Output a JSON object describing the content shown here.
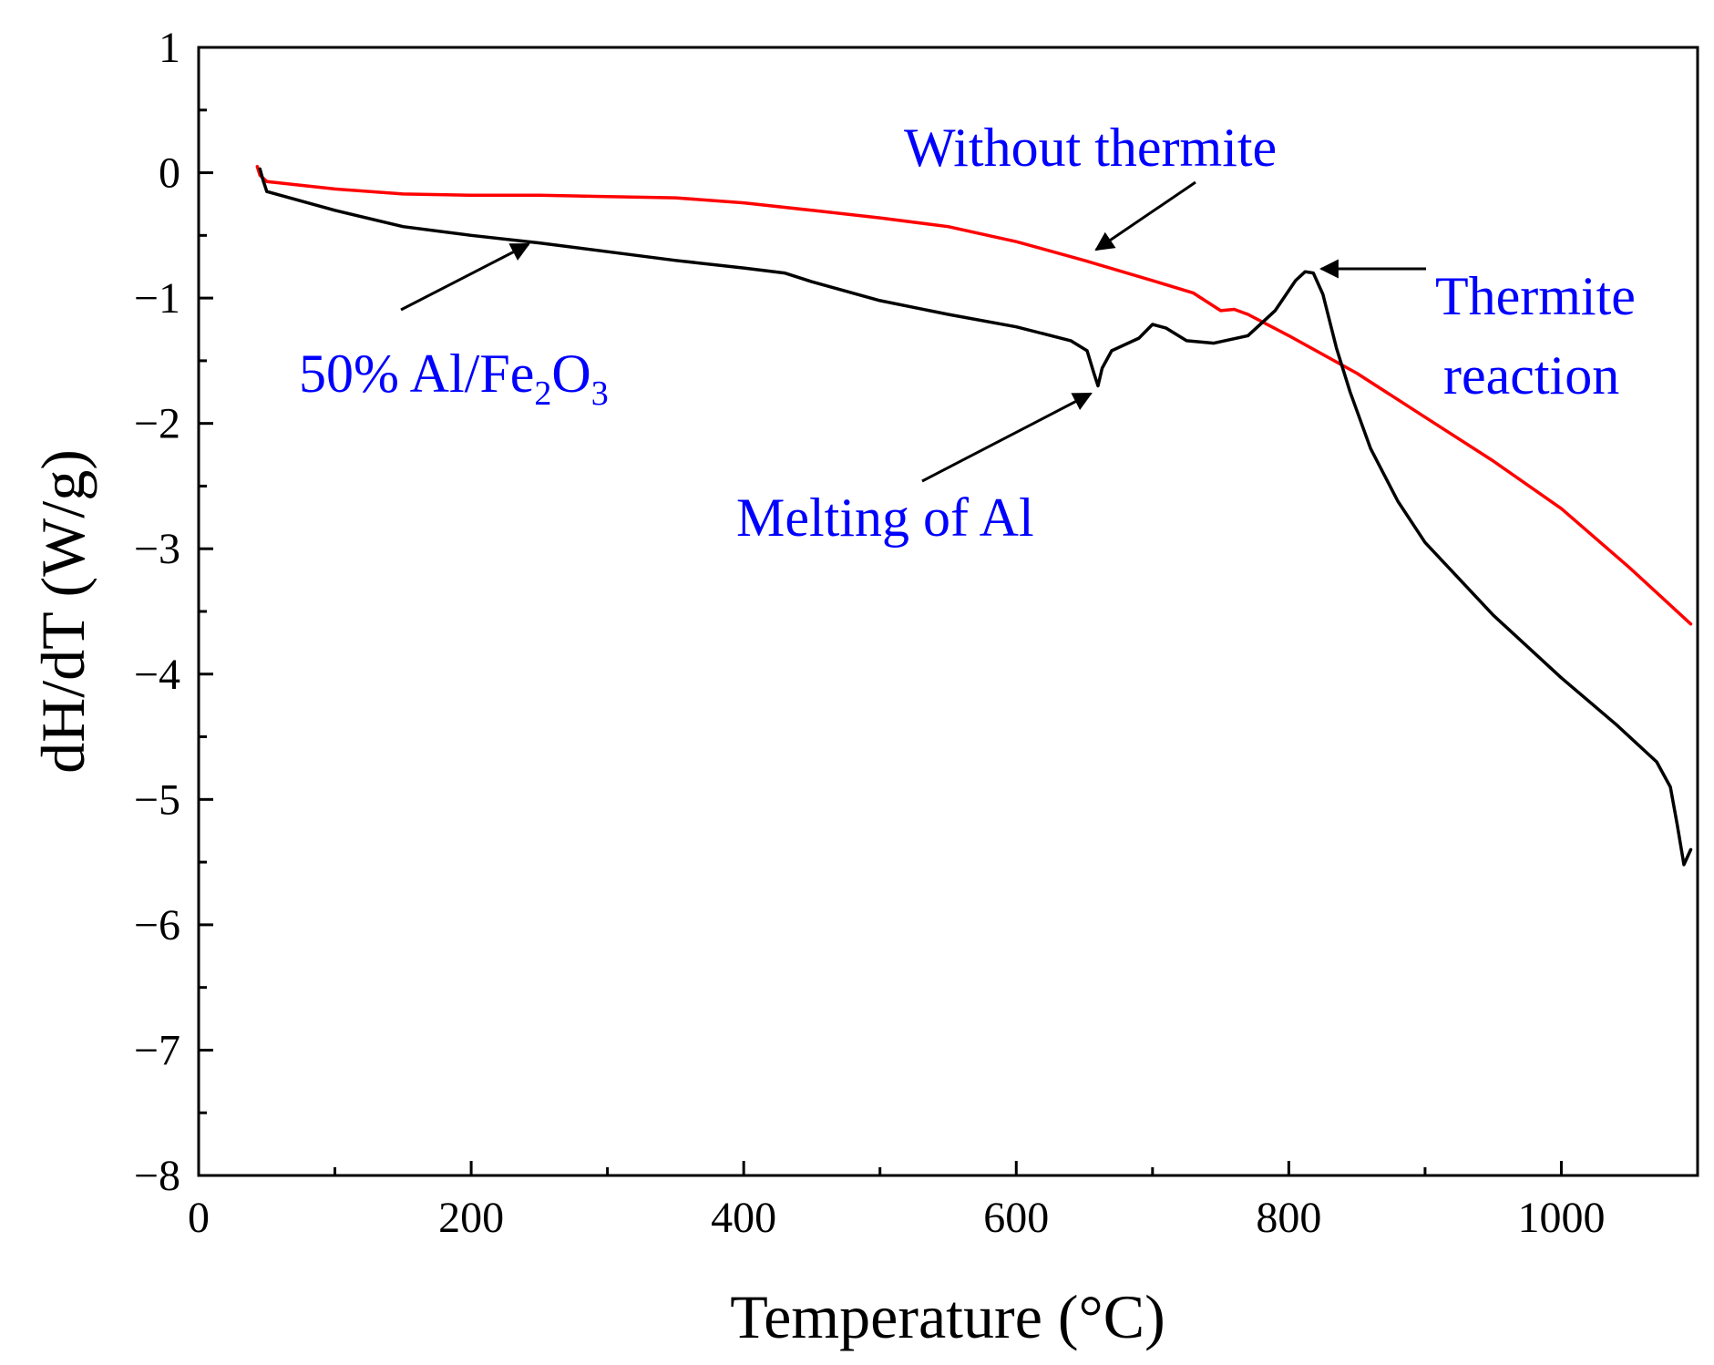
{
  "chart_data": {
    "type": "line",
    "title": "",
    "xlabel": "Temperature (°C)",
    "ylabel": "dH/dT (W/g)",
    "xlim": [
      0,
      1100
    ],
    "ylim": [
      -8,
      1
    ],
    "x_ticks": [
      0,
      200,
      400,
      600,
      800,
      1000
    ],
    "x_tick_labels": [
      "0",
      "200",
      "400",
      "600",
      "800",
      "1000"
    ],
    "x_minor_ticks": [
      100,
      300,
      500,
      700,
      900
    ],
    "y_ticks": [
      1,
      0,
      -1,
      -2,
      -3,
      -4,
      -5,
      -6,
      -7,
      -8
    ],
    "y_tick_labels": [
      "1",
      "0",
      "−1",
      "−2",
      "−3",
      "−4",
      "−5",
      "−6",
      "−7",
      "−8"
    ],
    "y_minor_step": 0.5,
    "grid": false,
    "series": [
      {
        "name": "Without thermite",
        "color": "#ff0000",
        "points": [
          [
            43,
            0.05
          ],
          [
            45,
            -0.02
          ],
          [
            50,
            -0.07
          ],
          [
            100,
            -0.13
          ],
          [
            150,
            -0.17
          ],
          [
            200,
            -0.18
          ],
          [
            250,
            -0.18
          ],
          [
            300,
            -0.19
          ],
          [
            350,
            -0.2
          ],
          [
            400,
            -0.24
          ],
          [
            450,
            -0.3
          ],
          [
            500,
            -0.36
          ],
          [
            550,
            -0.43
          ],
          [
            600,
            -0.55
          ],
          [
            650,
            -0.7
          ],
          [
            700,
            -0.86
          ],
          [
            730,
            -0.96
          ],
          [
            750,
            -1.1
          ],
          [
            760,
            -1.09
          ],
          [
            770,
            -1.13
          ],
          [
            800,
            -1.3
          ],
          [
            850,
            -1.6
          ],
          [
            900,
            -1.95
          ],
          [
            950,
            -2.3
          ],
          [
            1000,
            -2.68
          ],
          [
            1050,
            -3.15
          ],
          [
            1095,
            -3.6
          ]
        ]
      },
      {
        "name": "50% Al/Fe2O3",
        "color": "#000000",
        "points": [
          [
            45,
            0.03
          ],
          [
            47,
            -0.05
          ],
          [
            50,
            -0.15
          ],
          [
            100,
            -0.3
          ],
          [
            150,
            -0.43
          ],
          [
            200,
            -0.5
          ],
          [
            250,
            -0.56
          ],
          [
            300,
            -0.63
          ],
          [
            350,
            -0.7
          ],
          [
            400,
            -0.76
          ],
          [
            430,
            -0.8
          ],
          [
            450,
            -0.87
          ],
          [
            500,
            -1.02
          ],
          [
            550,
            -1.13
          ],
          [
            600,
            -1.23
          ],
          [
            640,
            -1.34
          ],
          [
            652,
            -1.42
          ],
          [
            657,
            -1.6
          ],
          [
            660,
            -1.7
          ],
          [
            663,
            -1.56
          ],
          [
            670,
            -1.42
          ],
          [
            690,
            -1.32
          ],
          [
            700,
            -1.21
          ],
          [
            710,
            -1.24
          ],
          [
            725,
            -1.34
          ],
          [
            745,
            -1.36
          ],
          [
            770,
            -1.3
          ],
          [
            790,
            -1.1
          ],
          [
            805,
            -0.86
          ],
          [
            812,
            -0.79
          ],
          [
            818,
            -0.8
          ],
          [
            825,
            -0.97
          ],
          [
            835,
            -1.4
          ],
          [
            845,
            -1.75
          ],
          [
            860,
            -2.2
          ],
          [
            880,
            -2.62
          ],
          [
            900,
            -2.95
          ],
          [
            950,
            -3.53
          ],
          [
            1000,
            -4.03
          ],
          [
            1040,
            -4.4
          ],
          [
            1070,
            -4.7
          ],
          [
            1080,
            -4.9
          ],
          [
            1085,
            -5.2
          ],
          [
            1090,
            -5.52
          ],
          [
            1095,
            -5.4
          ]
        ]
      }
    ],
    "annotations": [
      {
        "text": "Without thermite",
        "color": "#0000ff"
      },
      {
        "text_main": "50% Al/Fe",
        "sub1": "2",
        "mid": "O",
        "sub2": "3",
        "color": "#0000ff"
      },
      {
        "text": "Melting of Al",
        "color": "#0000ff"
      },
      {
        "line1": "Thermite",
        "line2": "reaction",
        "color": "#0000ff"
      }
    ]
  }
}
